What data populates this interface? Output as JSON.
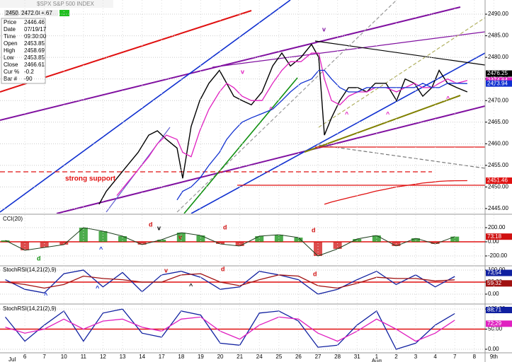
{
  "header": {
    "symbol": "$SPX S&P 500 INDEX",
    "quotes": [
      "2450.00",
      "2472.08",
      "+.67"
    ]
  },
  "info": [
    [
      "Price",
      "2446.46"
    ],
    [
      "Date",
      "07/19/17"
    ],
    [
      "Time",
      "09:30:00"
    ],
    [
      "Open",
      "2453.85"
    ],
    [
      "High",
      "2458.69"
    ],
    [
      "Low",
      "2453.85"
    ],
    [
      "Close",
      "2466.61"
    ],
    [
      "Cur %",
      "-0.2"
    ],
    [
      "Bar #",
      "-90"
    ]
  ],
  "chart_data": [
    {
      "type": "line",
      "x": [
        3.8,
        4.17,
        4.71,
        5.25,
        5.8,
        6.34,
        6.78,
        7.25,
        7.79,
        8.08,
        8.51,
        8.95,
        9.42,
        9.96,
        10.33,
        10.69,
        11.12,
        11.59,
        12.14,
        12.68,
        13.15,
        13.59,
        14.13,
        14.67,
        15.04,
        15.33,
        15.69,
        16.12,
        16.56,
        17.03,
        17.5,
        17.93,
        18.48,
        19.02,
        19.46,
        19.93,
        20.36,
        20.83,
        21.2,
        21.63,
        22.1,
        22.64
      ],
      "xlim": [
        -1.27,
        23.55
      ],
      "ylim": [
        2443.85,
        2493.28
      ],
      "yticks": [
        {
          "value": 2445,
          "label": "2445.00"
        },
        {
          "value": 2450,
          "label": "2450.00"
        },
        {
          "value": 2455,
          "label": "2455.00"
        },
        {
          "value": 2460,
          "label": "2460.00"
        },
        {
          "value": 2465,
          "label": "2465.00"
        },
        {
          "value": 2470,
          "label": "2470.00"
        },
        {
          "value": 2475,
          "label": "2475.00"
        },
        {
          "value": 2480,
          "label": "2480.00"
        },
        {
          "value": 2485,
          "label": "2485.00"
        },
        {
          "value": 2490,
          "label": "2490.00"
        }
      ],
      "series": [
        {
          "color": "#000000",
          "values": [
            2446,
            2449,
            2452,
            2455,
            2458,
            2462,
            2463,
            2461,
            2459,
            2452,
            2464,
            2470,
            2474,
            2477,
            2474,
            2471,
            2470,
            2469,
            2472,
            2478,
            2481,
            2478,
            2480,
            2483,
            2480,
            2462,
            2466,
            2470,
            2473,
            2473,
            2472,
            2474,
            2474,
            2470,
            2475,
            2474,
            2471,
            2473,
            2477,
            2474,
            2473,
            2472
          ]
        },
        {
          "color": "#e020c0",
          "values": [
            null,
            null,
            2448,
            2451,
            2454,
            2457,
            2460,
            2462,
            2461,
            2458,
            2457,
            2463,
            2468,
            2472,
            2474,
            2473,
            2471,
            2470,
            2470,
            2474,
            2477,
            2479,
            2479,
            2481,
            2481,
            2475,
            2470,
            2469,
            2471,
            2472,
            2472,
            2473,
            2473,
            2472,
            2473,
            2474,
            2473,
            2473,
            2474,
            2475,
            2474,
            2474.64
          ]
        },
        {
          "color": "#1030d0",
          "values": [
            null,
            null,
            null,
            null,
            null,
            null,
            null,
            null,
            2447,
            2449,
            2450,
            2452,
            2455,
            2458,
            2461,
            2463,
            2465,
            2466,
            2467,
            2468,
            2470,
            2472,
            2474,
            2475,
            2477,
            2477,
            2475,
            2473,
            2472,
            2472,
            2473,
            2473,
            2473,
            2473,
            2473,
            2473,
            2474,
            2473,
            2473,
            2474,
            2474,
            2473.94
          ]
        },
        {
          "color": "#e01010",
          "values": [
            null,
            null,
            null,
            null,
            null,
            null,
            null,
            null,
            null,
            null,
            null,
            null,
            null,
            null,
            null,
            null,
            null,
            null,
            null,
            null,
            null,
            null,
            null,
            null,
            null,
            2446,
            2446.5,
            2447,
            2447.5,
            2448,
            2448.5,
            2449,
            2449.5,
            2450,
            2450.3,
            2450.6,
            2450.9,
            2451.1,
            2451.3,
            2451.4,
            2451.45,
            2451.46
          ]
        }
      ],
      "price_labels": [
        {
          "value": 2476.25,
          "color": "#000000"
        }
      ],
      "annotations": [
        "strong support",
        "v",
        "v",
        "^",
        "^",
        "^",
        "^"
      ]
    },
    {
      "type": "bar",
      "title": "CCI(20)",
      "x": [
        -1,
        0,
        1,
        2,
        3,
        4,
        5,
        6,
        7,
        8,
        9,
        10,
        11,
        12,
        13,
        14,
        15,
        16,
        17,
        18,
        19,
        20,
        21,
        22
      ],
      "xlim": [
        -1.27,
        23.55
      ],
      "ylim": [
        -330,
        370
      ],
      "yticks": [
        {
          "value": -200,
          "label": "-200.00"
        },
        {
          "value": 0,
          "label": "0.00"
        },
        {
          "value": 200,
          "label": "200.00"
        }
      ],
      "colors": [
        "#109010",
        "#d01010"
      ],
      "values": [
        20,
        -120,
        -80,
        -40,
        200,
        150,
        80,
        -40,
        30,
        130,
        90,
        -30,
        -60,
        80,
        100,
        60,
        -200,
        -100,
        40,
        90,
        -60,
        50,
        -30,
        73.18
      ],
      "annotations": [
        "d",
        "d",
        "d",
        "d",
        "^",
        "v",
        "v"
      ]
    },
    {
      "type": "line",
      "title": "StochRSI(14,21(2),9)",
      "x": [
        -1,
        0,
        1,
        2,
        3,
        4,
        5,
        6,
        7,
        8,
        9,
        10,
        11,
        12,
        13,
        14,
        15,
        16,
        17,
        18,
        19,
        20,
        21,
        22
      ],
      "xlim": [
        -1.27,
        23.55
      ],
      "ylim": [
        -35.3,
        114.7
      ],
      "yticks": [
        {
          "value": 0,
          "label": "0.00"
        },
        {
          "value": 50,
          "label": "50.00"
        },
        {
          "value": 100,
          "label": "100.00"
        }
      ],
      "series": [
        {
          "color": "#1020a0",
          "values": [
            60,
            20,
            5,
            85,
            100,
            30,
            90,
            10,
            80,
            95,
            70,
            20,
            30,
            95,
            80,
            60,
            0,
            20,
            60,
            95,
            40,
            80,
            30,
            73.54
          ]
        },
        {
          "color": "#a01010",
          "values": [
            50,
            40,
            25,
            40,
            75,
            65,
            60,
            50,
            50,
            80,
            85,
            50,
            35,
            60,
            80,
            75,
            35,
            25,
            45,
            70,
            65,
            65,
            55,
            59.32
          ]
        }
      ],
      "annotations": [
        "v",
        "d",
        "d",
        "^",
        "^",
        "^"
      ]
    },
    {
      "type": "line",
      "title": "StochRSI(14,21(2),9)",
      "x": [
        -1,
        0,
        1,
        2,
        3,
        4,
        5,
        6,
        7,
        8,
        9,
        10,
        11,
        12,
        13,
        14,
        15,
        16,
        17,
        18,
        19,
        20,
        21,
        22
      ],
      "xlim": [
        -1.27,
        23.55
      ],
      "ylim": [
        -7.1,
        108.9
      ],
      "yticks": [
        {
          "value": 0,
          "label": "0.00"
        },
        {
          "value": 50,
          "label": "50.00"
        },
        {
          "value": 100,
          "label": "100.00"
        }
      ],
      "series": [
        {
          "color": "#1020a0",
          "values": [
            80,
            20,
            60,
            95,
            20,
            90,
            100,
            40,
            30,
            95,
            85,
            15,
            10,
            90,
            95,
            70,
            5,
            10,
            60,
            95,
            0,
            15,
            60,
            88.71
          ]
        },
        {
          "color": "#e020c0",
          "values": [
            55,
            40,
            50,
            75,
            50,
            70,
            75,
            55,
            45,
            75,
            80,
            45,
            25,
            60,
            80,
            75,
            40,
            20,
            45,
            75,
            50,
            20,
            40,
            72.29
          ]
        }
      ],
      "categories": [
        "6",
        "7",
        "10",
        "11",
        "12",
        "13",
        "14",
        "17",
        "18",
        "19",
        "20",
        "21",
        "24",
        "25",
        "26",
        "27",
        "28",
        "31",
        "1",
        "2",
        "3",
        "4",
        "7",
        "8",
        "9th"
      ],
      "months": [
        "Jul",
        "Aug"
      ]
    }
  ]
}
